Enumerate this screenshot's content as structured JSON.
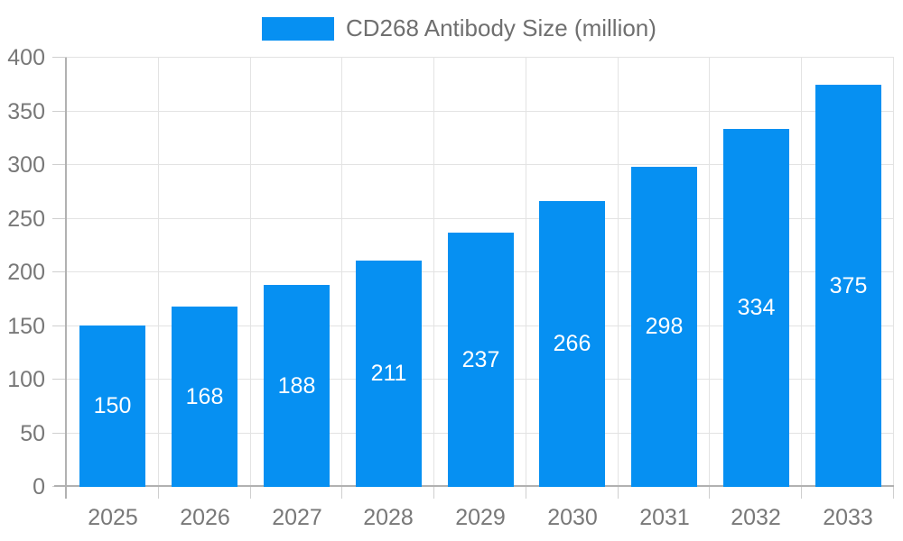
{
  "legend": {
    "label": "CD268 Antibody Size (million)"
  },
  "chart_data": {
    "type": "bar",
    "title": "CD268 Antibody Size (million)",
    "categories": [
      "2025",
      "2026",
      "2027",
      "2028",
      "2029",
      "2030",
      "2031",
      "2032",
      "2033"
    ],
    "values": [
      150,
      168,
      188,
      211,
      237,
      266,
      298,
      334,
      375
    ],
    "value_labels": [
      "150",
      "168",
      "188",
      "211",
      "237",
      "266",
      "298",
      "334",
      "375"
    ],
    "xlabel": "",
    "ylabel": "",
    "ylim": [
      0,
      400
    ],
    "y_ticks": [
      0,
      50,
      100,
      150,
      200,
      250,
      300,
      350,
      400
    ],
    "grid": "on",
    "legend_position": "top-center",
    "value_label_position": "inside-center"
  },
  "colors": {
    "bar": "#0690F2",
    "value_label": "#ffffff",
    "gridline": "#e3e3e3",
    "axis_line": "#b1b1b1",
    "outer_tick": "#cfcfcf",
    "axis_label": "#787878",
    "legend_text": "#6f6f6f",
    "background": "#ffffff"
  }
}
